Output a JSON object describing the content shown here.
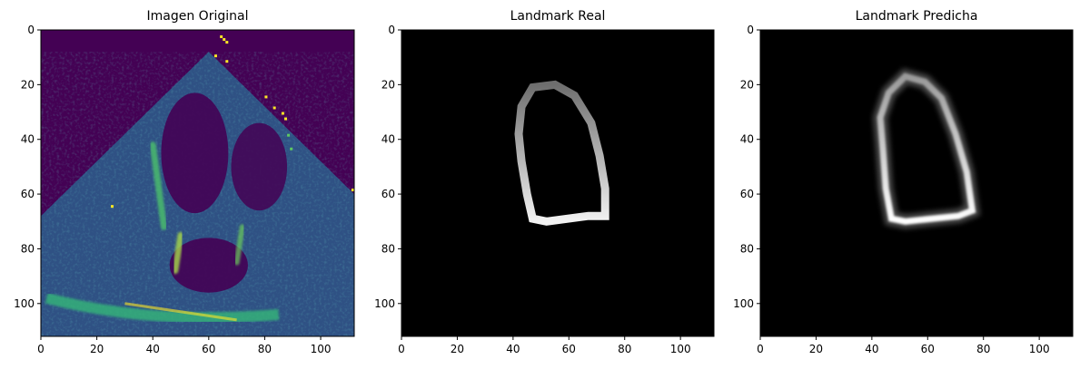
{
  "chart_data": [
    {
      "type": "heatmap",
      "title": "Imagen Original",
      "xlim": [
        0,
        112
      ],
      "ylim": [
        112,
        0
      ],
      "xticks": [
        "0",
        "20",
        "40",
        "60",
        "80",
        "100"
      ],
      "yticks": [
        "0",
        "20",
        "40",
        "60",
        "80",
        "100"
      ],
      "colormap": "viridis",
      "content": "echocardiogram"
    },
    {
      "type": "heatmap",
      "title": "Landmark Real",
      "xlim": [
        0,
        112
      ],
      "ylim": [
        112,
        0
      ],
      "xticks": [
        "0",
        "20",
        "40",
        "60",
        "80",
        "100"
      ],
      "yticks": [
        "0",
        "20",
        "40",
        "60",
        "80",
        "100"
      ],
      "colormap": "gray",
      "contour": [
        [
          42,
          38
        ],
        [
          43,
          28
        ],
        [
          47,
          21
        ],
        [
          55,
          20
        ],
        [
          62,
          24
        ],
        [
          68,
          34
        ],
        [
          71,
          46
        ],
        [
          73,
          58
        ],
        [
          73,
          68
        ],
        [
          67,
          68
        ],
        [
          52,
          70
        ],
        [
          47,
          69
        ],
        [
          45,
          60
        ],
        [
          43,
          48
        ]
      ]
    },
    {
      "type": "heatmap",
      "title": "Landmark Predicha",
      "xlim": [
        0,
        112
      ],
      "ylim": [
        112,
        0
      ],
      "xticks": [
        "0",
        "20",
        "40",
        "60",
        "80",
        "100"
      ],
      "yticks": [
        "0",
        "20",
        "40",
        "60",
        "80",
        "100"
      ],
      "colormap": "gray",
      "contour": [
        [
          43,
          32
        ],
        [
          46,
          23
        ],
        [
          52,
          17
        ],
        [
          59,
          19
        ],
        [
          65,
          25
        ],
        [
          70,
          38
        ],
        [
          74,
          52
        ],
        [
          76,
          66
        ],
        [
          71,
          68
        ],
        [
          52,
          70
        ],
        [
          47,
          69
        ],
        [
          45,
          58
        ],
        [
          44,
          44
        ]
      ]
    }
  ],
  "colors": {
    "viridis_dark": "#440154",
    "viridis_mid": "#21918c",
    "viridis_bright": "#fde725",
    "black": "#000000"
  }
}
